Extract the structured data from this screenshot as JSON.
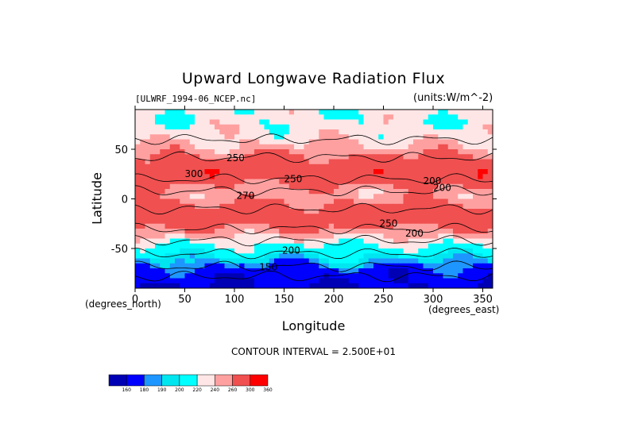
{
  "chart_data": {
    "type": "heatmap",
    "title": "Upward Longwave Radiation Flux",
    "file_label": "[ULWRF_1994-06_NCEP.nc]",
    "units_label": "(units:W/m^-2)",
    "xlabel": "Longitude",
    "ylabel": "Latitude",
    "x_unit": "(degrees_east)",
    "y_unit": "(degrees_north)",
    "xlim": [
      0,
      360
    ],
    "ylim": [
      -90,
      90
    ],
    "x_ticks": [
      {
        "value": 0,
        "label": "0"
      },
      {
        "value": 50,
        "label": "50"
      },
      {
        "value": 100,
        "label": "100"
      },
      {
        "value": 150,
        "label": "150"
      },
      {
        "value": 200,
        "label": "200"
      },
      {
        "value": 250,
        "label": "250"
      },
      {
        "value": 300,
        "label": "300"
      },
      {
        "value": 350,
        "label": "350"
      }
    ],
    "y_ticks": [
      {
        "value": 50,
        "label": "50"
      },
      {
        "value": 0,
        "label": "0"
      },
      {
        "value": -50,
        "label": "-50"
      }
    ],
    "contour_interval_text": "CONTOUR INTERVAL = 2.500E+01",
    "contour_labels": [
      {
        "text": "250",
        "lon": 92,
        "lat": 38
      },
      {
        "text": "250",
        "lon": 150,
        "lat": 17
      },
      {
        "text": "300",
        "lon": 50,
        "lat": 22
      },
      {
        "text": "270",
        "lon": 102,
        "lat": 0
      },
      {
        "text": "200",
        "lon": 290,
        "lat": 15
      },
      {
        "text": "200",
        "lon": 300,
        "lat": 8
      },
      {
        "text": "250",
        "lon": 246,
        "lat": -28
      },
      {
        "text": "200",
        "lon": 272,
        "lat": -38
      },
      {
        "text": "200",
        "lon": 148,
        "lat": -55
      },
      {
        "text": "150",
        "lon": 125,
        "lat": -72
      }
    ],
    "colorbar": {
      "levels": [
        "160",
        "180",
        "190",
        "200",
        "220",
        "240",
        "260",
        "300",
        "360"
      ],
      "colors": [
        "#0000b4",
        "#0000ff",
        "#1e96ff",
        "#00e6f0",
        "#00ffff",
        "#ffe6e6",
        "#ffa0a0",
        "#f05050",
        "#ff0000"
      ]
    },
    "zonal_profile": [
      {
        "lat": 90,
        "value": 225
      },
      {
        "lat": 75,
        "value": 228
      },
      {
        "lat": 65,
        "value": 232
      },
      {
        "lat": 55,
        "value": 240
      },
      {
        "lat": 45,
        "value": 258
      },
      {
        "lat": 35,
        "value": 275
      },
      {
        "lat": 25,
        "value": 290
      },
      {
        "lat": 15,
        "value": 262
      },
      {
        "lat": 5,
        "value": 248
      },
      {
        "lat": -5,
        "value": 262
      },
      {
        "lat": -15,
        "value": 280
      },
      {
        "lat": -25,
        "value": 272
      },
      {
        "lat": -35,
        "value": 248
      },
      {
        "lat": -45,
        "value": 222
      },
      {
        "lat": -55,
        "value": 205
      },
      {
        "lat": -65,
        "value": 185
      },
      {
        "lat": -75,
        "value": 168
      },
      {
        "lat": -85,
        "value": 162
      },
      {
        "lat": -90,
        "value": 160
      }
    ],
    "grid": false
  }
}
